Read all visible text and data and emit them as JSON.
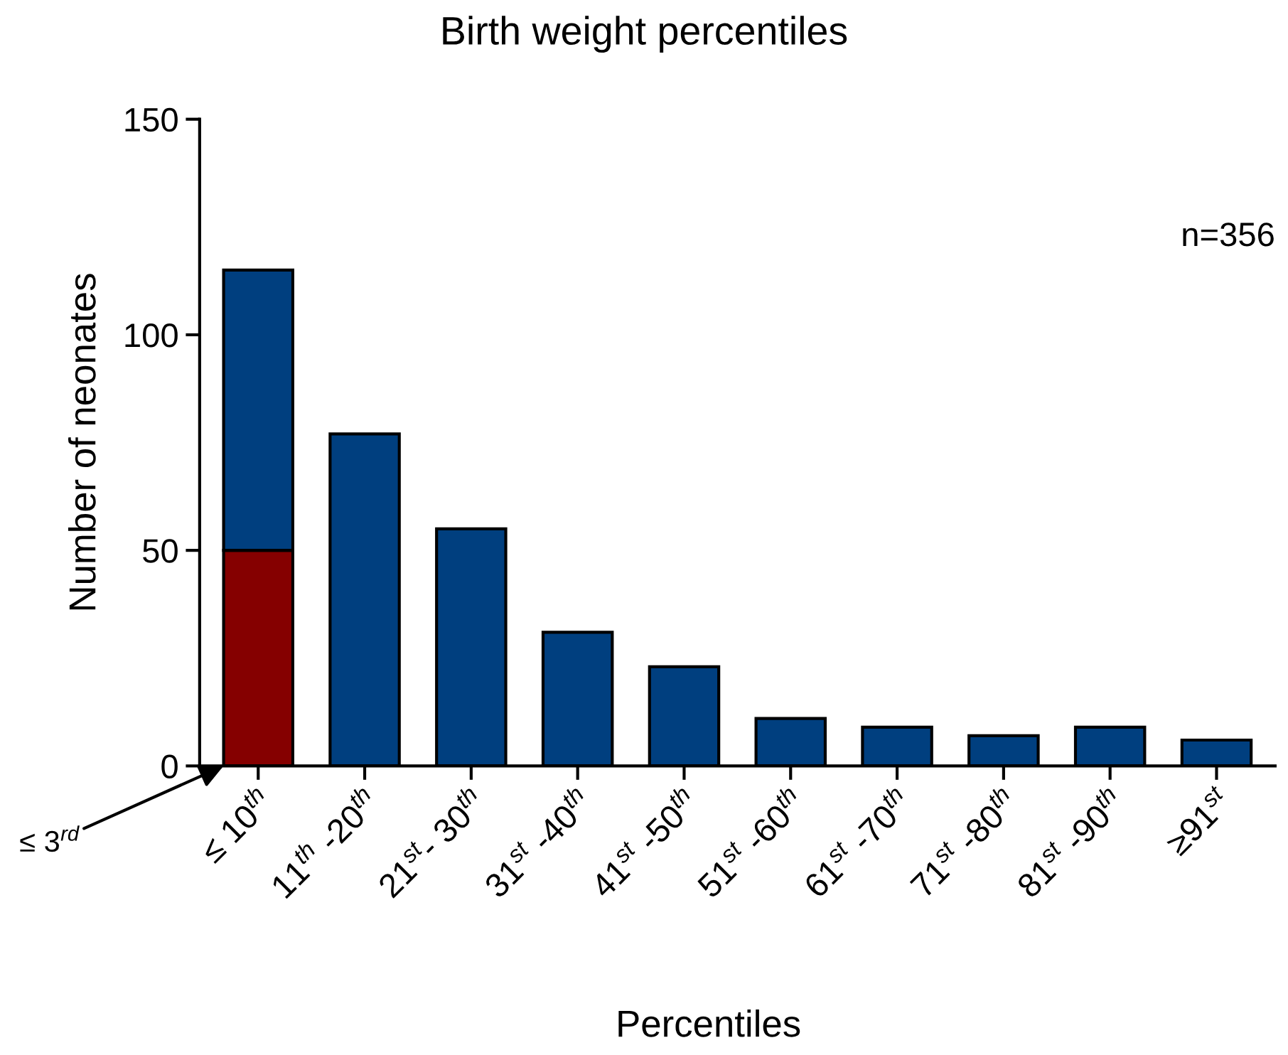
{
  "chart_data": {
    "type": "bar",
    "title": "Birth weight percentiles",
    "xlabel": "Percentiles",
    "ylabel": "Number of neonates",
    "categories": [
      "≤ 10$^{th}$",
      "11$^{th}$ -20$^{th}$",
      "21$^{st}$- 30$^{th}$",
      "31$^{st}$ -40$^{th}$",
      "41$^{st}$ -50$^{th}$",
      "51$^{st}$ -60$^{th}$",
      "61$^{st}$ -70$^{th}$",
      "71$^{st}$ -80$^{th}$",
      "81$^{st}$ -90$^{th}$",
      "≥91$^{st}$"
    ],
    "stacked": true,
    "series": [
      {
        "color": "#850000",
        "values": [
          50,
          null,
          null,
          null,
          null,
          null,
          null,
          null,
          null,
          null
        ]
      },
      {
        "color": "#003f7f",
        "values": [
          65,
          77,
          55,
          31,
          23,
          11,
          9,
          7,
          9,
          6
        ]
      }
    ],
    "ylim": [
      0,
      150
    ],
    "yticks": [
      0,
      50,
      100,
      150
    ],
    "grid": false,
    "legend": false,
    "annotations": [
      "≤ 3$^{rd}$",
      "n=356"
    ]
  }
}
